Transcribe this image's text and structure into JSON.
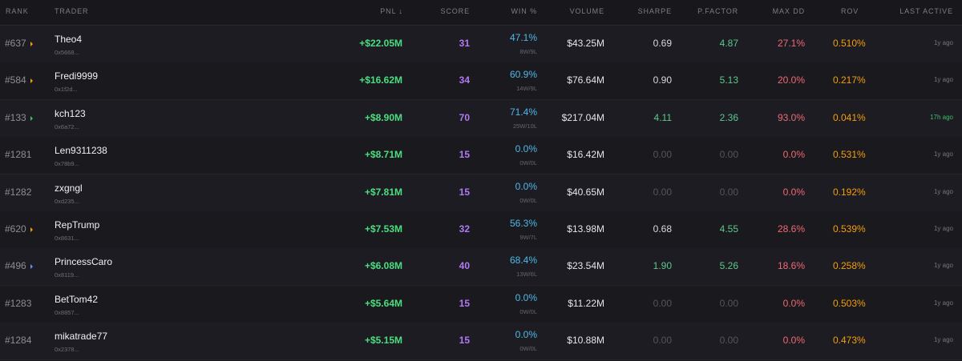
{
  "header": {
    "rank": "RANK",
    "trader": "TRADER",
    "pnl": "PNL",
    "pnl_sort_icon": "↓",
    "score": "SCORE",
    "win": "WIN %",
    "volume": "VOLUME",
    "sharpe": "SHARPE",
    "pfactor": "P.FACTOR",
    "maxdd": "MAX DD",
    "rov": "ROV",
    "last_active": "LAST ACTIVE"
  },
  "colors": {
    "pnl": "#4ade80",
    "score": "#b27af5",
    "win": "#4fb8e8",
    "rov": "#f59e0b",
    "maxdd": "#f06a73",
    "pfactor": "#5cc98a",
    "sharpe_positive": "#5cc98a",
    "recent": "#3fbf6f"
  },
  "rows": [
    {
      "rank": "#637",
      "trend": "up-orange",
      "name": "Theo4",
      "address": "0x5668...",
      "pnl": "+$22.05M",
      "score": "31",
      "win": "47.1%",
      "wl": "8W/9L",
      "volume": "$43.25M",
      "sharpe": "0.69",
      "pfactor": "4.87",
      "maxdd": "27.1%",
      "rov": "0.510%",
      "last_active": "1y ago"
    },
    {
      "rank": "#584",
      "trend": "up-orange",
      "name": "Fredi9999",
      "address": "0x1f2d...",
      "pnl": "+$16.62M",
      "score": "34",
      "win": "60.9%",
      "wl": "14W/9L",
      "volume": "$76.64M",
      "sharpe": "0.90",
      "pfactor": "5.13",
      "maxdd": "20.0%",
      "rov": "0.217%",
      "last_active": "1y ago"
    },
    {
      "rank": "#133",
      "trend": "up-green",
      "name": "kch123",
      "address": "0x6a72...",
      "pnl": "+$8.90M",
      "score": "70",
      "win": "71.4%",
      "wl": "25W/10L",
      "volume": "$217.04M",
      "sharpe": "4.11",
      "pfactor": "2.36",
      "maxdd": "93.0%",
      "rov": "0.041%",
      "last_active": "17h ago"
    },
    {
      "rank": "#1281",
      "trend": "",
      "name": "Len9311238",
      "address": "0x78b9...",
      "pnl": "+$8.71M",
      "score": "15",
      "win": "0.0%",
      "wl": "0W/0L",
      "volume": "$16.42M",
      "sharpe": "0.00",
      "pfactor": "0.00",
      "maxdd": "0.0%",
      "rov": "0.531%",
      "last_active": "1y ago"
    },
    {
      "rank": "#1282",
      "trend": "",
      "name": "zxgngl",
      "address": "0xd235...",
      "pnl": "+$7.81M",
      "score": "15",
      "win": "0.0%",
      "wl": "0W/0L",
      "volume": "$40.65M",
      "sharpe": "0.00",
      "pfactor": "0.00",
      "maxdd": "0.0%",
      "rov": "0.192%",
      "last_active": "1y ago"
    },
    {
      "rank": "#620",
      "trend": "up-orange",
      "name": "RepTrump",
      "address": "0x8631...",
      "pnl": "+$7.53M",
      "score": "32",
      "win": "56.3%",
      "wl": "9W/7L",
      "volume": "$13.98M",
      "sharpe": "0.68",
      "pfactor": "4.55",
      "maxdd": "28.6%",
      "rov": "0.539%",
      "last_active": "1y ago"
    },
    {
      "rank": "#496",
      "trend": "up-blue",
      "name": "PrincessCaro",
      "address": "0x8119...",
      "pnl": "+$6.08M",
      "score": "40",
      "win": "68.4%",
      "wl": "13W/6L",
      "volume": "$23.54M",
      "sharpe": "1.90",
      "pfactor": "5.26",
      "maxdd": "18.6%",
      "rov": "0.258%",
      "last_active": "1y ago"
    },
    {
      "rank": "#1283",
      "trend": "",
      "name": "BetTom42",
      "address": "0x8857...",
      "pnl": "+$5.64M",
      "score": "15",
      "win": "0.0%",
      "wl": "0W/0L",
      "volume": "$11.22M",
      "sharpe": "0.00",
      "pfactor": "0.00",
      "maxdd": "0.0%",
      "rov": "0.503%",
      "last_active": "1y ago"
    },
    {
      "rank": "#1284",
      "trend": "",
      "name": "mikatrade77",
      "address": "0x2378...",
      "pnl": "+$5.15M",
      "score": "15",
      "win": "0.0%",
      "wl": "0W/0L",
      "volume": "$10.88M",
      "sharpe": "0.00",
      "pfactor": "0.00",
      "maxdd": "0.0%",
      "rov": "0.473%",
      "last_active": "1y ago"
    }
  ]
}
